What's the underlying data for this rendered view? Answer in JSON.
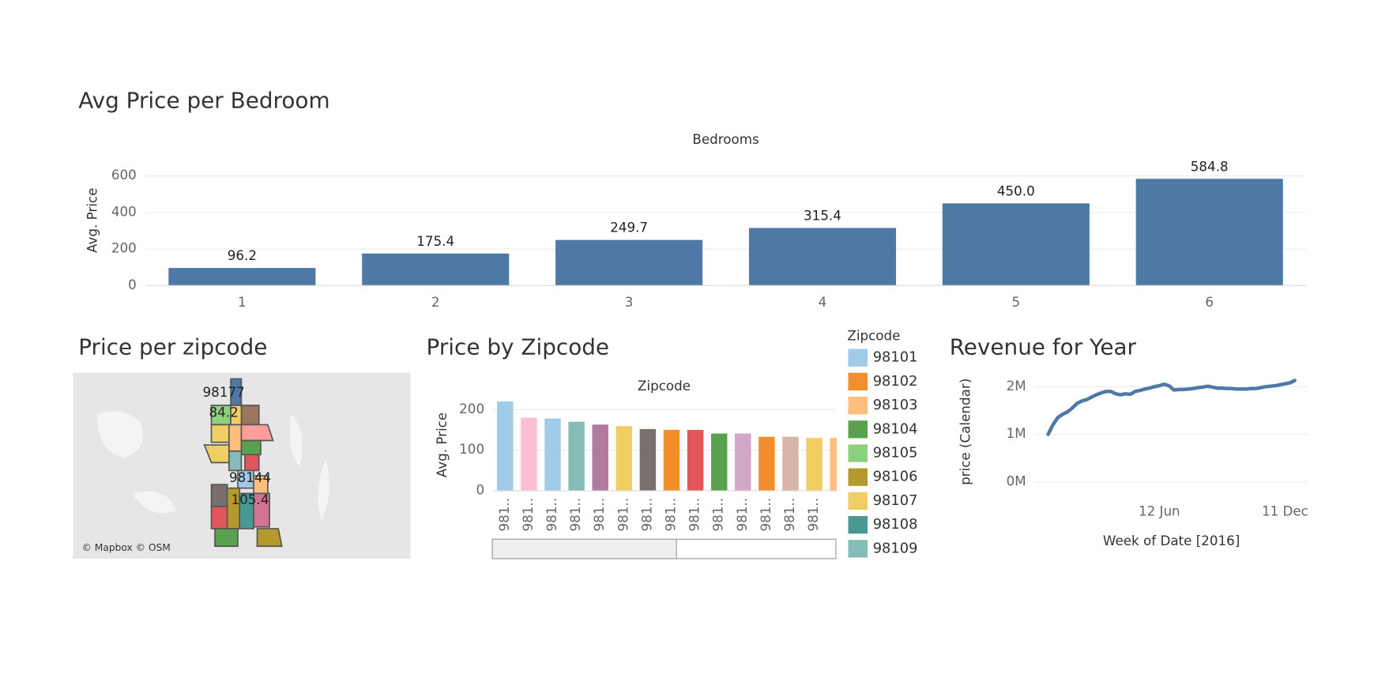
{
  "chart_data": [
    {
      "type": "bar",
      "title": "Avg Price per Bedroom",
      "x_label": "Bedrooms",
      "y_label": "Avg. Price",
      "categories": [
        "1",
        "2",
        "3",
        "4",
        "5",
        "6"
      ],
      "values": [
        96.2,
        175.4,
        249.7,
        315.4,
        450.0,
        584.8
      ],
      "value_labels": [
        "96.2",
        "175.4",
        "249.7",
        "315.4",
        "450.0",
        "584.8"
      ],
      "color": "#4e79a7",
      "ylim": [
        0,
        700
      ],
      "yticks": [
        0,
        200,
        400,
        600
      ],
      "grid": true
    },
    {
      "type": "bar",
      "title": "Price by Zipcode",
      "x_label": "Zipcode",
      "y_label": "Avg. Price",
      "categories": [
        "981..",
        "981..",
        "981..",
        "981..",
        "981..",
        "981..",
        "981..",
        "981..",
        "981..",
        "981..",
        "981..",
        "981..",
        "981..",
        "981..",
        "981.."
      ],
      "values": [
        220,
        180,
        178,
        170,
        163,
        159,
        152,
        150,
        150,
        141,
        141,
        133,
        133,
        130,
        130
      ],
      "colors": [
        "#a0cbe8",
        "#fabfd2",
        "#a0cbe8",
        "#86bcb6",
        "#b07aa1",
        "#f1ce63",
        "#79706e",
        "#f28e2b",
        "#e15759",
        "#59a14f",
        "#d4a6c8",
        "#f28e2b",
        "#d7b5a6",
        "#f1ce63",
        "#ffbe7d"
      ],
      "ylim": [
        0,
        230
      ],
      "yticks": [
        0,
        100,
        200
      ],
      "grid": true,
      "legend": {
        "title": "Zipcode",
        "position": "right",
        "entries": [
          {
            "name": "98101",
            "color": "#a0cbe8"
          },
          {
            "name": "98102",
            "color": "#f28e2b"
          },
          {
            "name": "98103",
            "color": "#ffbe7d"
          },
          {
            "name": "98104",
            "color": "#59a14f"
          },
          {
            "name": "98105",
            "color": "#8cd17d"
          },
          {
            "name": "98106",
            "color": "#b6992d"
          },
          {
            "name": "98107",
            "color": "#f1ce63"
          },
          {
            "name": "98108",
            "color": "#499894"
          },
          {
            "name": "98109",
            "color": "#86bcb6"
          }
        ]
      }
    },
    {
      "type": "line",
      "title": "Revenue for Year",
      "x_label": "Week of Date [2016]",
      "y_label": "price (Calendar)",
      "categories": [
        null,
        null,
        null,
        null,
        null,
        null,
        null,
        null,
        null,
        null,
        null,
        null,
        null,
        null,
        null,
        null,
        null,
        null,
        null,
        null,
        null,
        null,
        null,
        "12 Jun",
        null,
        null,
        null,
        null,
        null,
        null,
        null,
        null,
        null,
        null,
        null,
        null,
        null,
        null,
        null,
        null,
        null,
        null,
        null,
        null,
        null,
        null,
        null,
        null,
        null,
        "11 Dec",
        null,
        null
      ],
      "series": [
        {
          "color": "#4e79a7",
          "values": [
            1000000,
            1200000,
            1350000,
            1420000,
            1470000,
            1550000,
            1650000,
            1700000,
            1730000,
            1780000,
            1830000,
            1870000,
            1900000,
            1900000,
            1850000,
            1830000,
            1850000,
            1840000,
            1900000,
            1920000,
            1950000,
            1970000,
            2000000,
            2020000,
            2050000,
            2020000,
            1930000,
            1940000,
            1940000,
            1950000,
            1960000,
            1980000,
            1990000,
            2010000,
            1990000,
            1970000,
            1970000,
            1960000,
            1960000,
            1950000,
            1950000,
            1950000,
            1960000,
            1960000,
            1980000,
            2000000,
            2010000,
            2020000,
            2040000,
            2060000,
            2080000,
            2130000
          ]
        }
      ],
      "ylim": [
        0,
        2200000
      ],
      "yticks": [
        {
          "value": 0,
          "label": "0M"
        },
        {
          "value": 1000000,
          "label": "1M"
        },
        {
          "value": 2000000,
          "label": "2M"
        }
      ],
      "grid": true
    }
  ],
  "map": {
    "title": "Price per zipcode",
    "labels": [
      {
        "zipcode": "98177",
        "value": 84.2
      },
      {
        "zipcode": "98144",
        "value": 105.4
      }
    ],
    "attribution": "© Mapbox © OSM"
  }
}
